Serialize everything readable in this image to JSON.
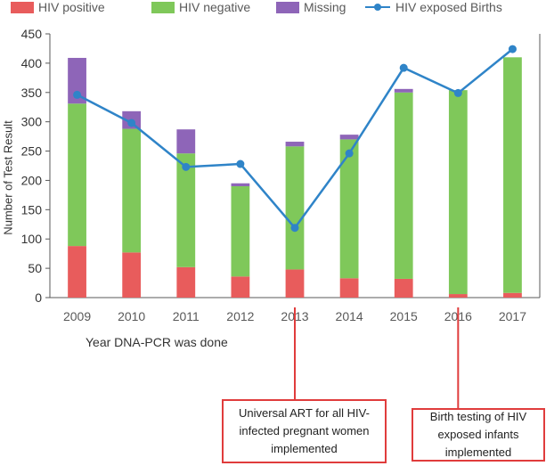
{
  "chart_data": {
    "type": "bar",
    "stacked": true,
    "categories": [
      "2009",
      "2010",
      "2011",
      "2012",
      "2013",
      "2014",
      "2015",
      "2016",
      "2017"
    ],
    "series": [
      {
        "name": "HIV positive",
        "kind": "bar",
        "color": "#e85c5c",
        "values": [
          88,
          77,
          52,
          36,
          48,
          33,
          32,
          6,
          8
        ]
      },
      {
        "name": "HIV negative",
        "kind": "bar",
        "color": "#7fc85a",
        "values": [
          243,
          211,
          194,
          154,
          210,
          237,
          318,
          348,
          402
        ]
      },
      {
        "name": "Missing",
        "kind": "bar",
        "color": "#8e65b8",
        "values": [
          78,
          30,
          41,
          5,
          8,
          8,
          6,
          0,
          0
        ]
      },
      {
        "name": "HIV exposed Births",
        "kind": "line",
        "color": "#2f84c8",
        "values": [
          346,
          298,
          223,
          228,
          119,
          246,
          392,
          349,
          424
        ]
      }
    ],
    "title": "",
    "xlabel": "Year DNA-PCR was done",
    "ylabel": "Number of Test Result",
    "ylim": [
      0,
      450
    ],
    "yticks": [
      "0",
      "50",
      "100",
      "150",
      "200",
      "250",
      "300",
      "350",
      "400",
      "450"
    ],
    "grid": false,
    "legend": "top",
    "annotations": [
      {
        "text": "Universal ART for all HIV-infected pregnant women implemented",
        "points_to": "2013"
      },
      {
        "text": "Birth testing of HIV exposed infants implemented",
        "points_to": "2016"
      }
    ]
  }
}
